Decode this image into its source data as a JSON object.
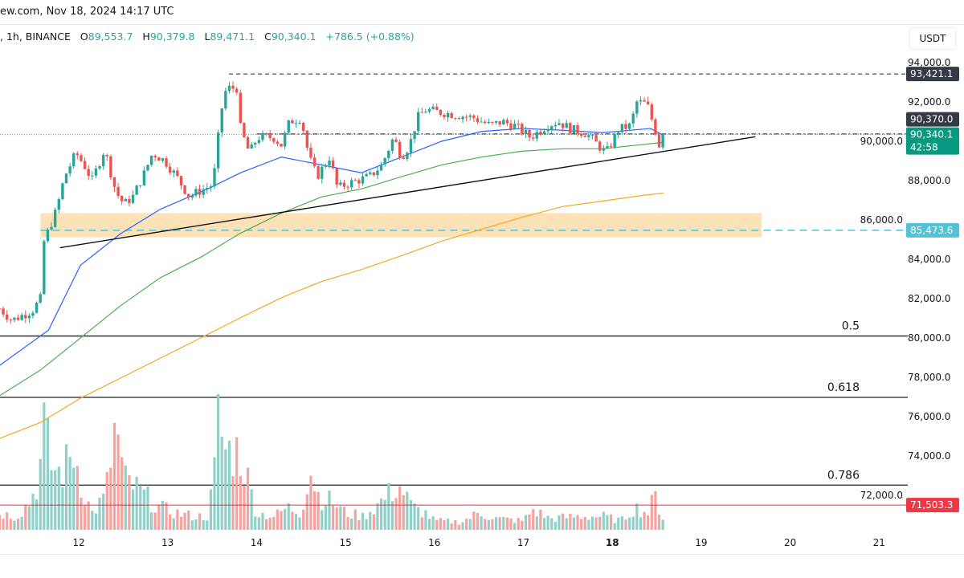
{
  "header": {
    "source_line": "ew.com, Nov 18, 2024 14:17 UTC",
    "symbol_line": ", 1h, BINANCE",
    "ohlc": {
      "open_label": "O",
      "open": "89,553.7",
      "high_label": "H",
      "high": "90,379.8",
      "low_label": "L",
      "low": "89,471.1",
      "close_label": "C",
      "close": "90,340.1",
      "change": "+786.5 (+0.88%)"
    },
    "currency": "USDT"
  },
  "colors": {
    "up": "#26a69a",
    "down": "#ef5350",
    "vol_up": "#8fd1c9",
    "vol_down": "#f4a3a1",
    "ma_fast": "#2962ff",
    "ma_mid": "#4caf50",
    "ma_slow": "#f5a623",
    "zone": "#fddcaa",
    "support_dashed": "#4fc3d7",
    "red_line": "#e0303a",
    "tag_dark": "#363a45",
    "tag_green": "#089981",
    "tag_cyan": "#4fc3d7",
    "tag_red": "#f23645"
  },
  "chart_data": {
    "type": "candlestick",
    "timeframe": "1h",
    "x_unit": "day of November 2024",
    "xlim": [
      11.11,
      21.3
    ],
    "ylim": [
      70400,
      95300
    ],
    "x_ticks": [
      12,
      13,
      14,
      15,
      16,
      17,
      18,
      19,
      20,
      21
    ],
    "x_tick_labels": [
      "12",
      "13",
      "14",
      "15",
      "16",
      "17",
      "18",
      "19",
      "20",
      "21"
    ],
    "y_ticks": [
      94000,
      92000,
      90000,
      88000,
      86000,
      84000,
      82000,
      80000,
      78000,
      76000,
      74000,
      72000
    ],
    "y_tick_labels": [
      "94,000.0",
      "92,000.0",
      "90,000.0",
      "88,000.0",
      "86,000.0",
      "84,000.0",
      "82,000.0",
      "80,000.0",
      "78,000.0",
      "76,000.0",
      "74,000.0",
      "72,000.0"
    ],
    "close_path": [
      [
        11.11,
        81500
      ],
      [
        11.25,
        80900
      ],
      [
        11.48,
        81400
      ],
      [
        11.57,
        82000
      ],
      [
        11.61,
        84900
      ],
      [
        11.75,
        86500
      ],
      [
        11.84,
        88200
      ],
      [
        11.97,
        89400
      ],
      [
        12.06,
        88800
      ],
      [
        12.15,
        88000
      ],
      [
        12.29,
        89600
      ],
      [
        12.42,
        87400
      ],
      [
        12.51,
        86800
      ],
      [
        12.61,
        87200
      ],
      [
        12.74,
        88400
      ],
      [
        12.83,
        89400
      ],
      [
        12.97,
        89000
      ],
      [
        13.1,
        88200
      ],
      [
        13.24,
        87200
      ],
      [
        13.42,
        87600
      ],
      [
        13.51,
        87800
      ],
      [
        13.6,
        91500
      ],
      [
        13.66,
        92700
      ],
      [
        13.78,
        92700
      ],
      [
        13.82,
        90600
      ],
      [
        13.92,
        89400
      ],
      [
        14.01,
        90200
      ],
      [
        14.19,
        90200
      ],
      [
        14.28,
        89800
      ],
      [
        14.37,
        91000
      ],
      [
        14.5,
        91200
      ],
      [
        14.59,
        89200
      ],
      [
        14.68,
        88200
      ],
      [
        14.82,
        89200
      ],
      [
        14.91,
        87600
      ],
      [
        15.0,
        87800
      ],
      [
        15.13,
        88000
      ],
      [
        15.27,
        88200
      ],
      [
        15.41,
        88800
      ],
      [
        15.54,
        90200
      ],
      [
        15.63,
        89200
      ],
      [
        15.72,
        89800
      ],
      [
        15.81,
        91200
      ],
      [
        15.9,
        91600
      ],
      [
        16.17,
        91400
      ],
      [
        16.44,
        91200
      ],
      [
        16.63,
        90800
      ],
      [
        16.76,
        91000
      ],
      [
        16.9,
        90800
      ],
      [
        17.08,
        90200
      ],
      [
        17.26,
        90800
      ],
      [
        17.39,
        91000
      ],
      [
        17.54,
        90600
      ],
      [
        17.71,
        90400
      ],
      [
        17.84,
        89800
      ],
      [
        17.93,
        89400
      ],
      [
        18.07,
        90600
      ],
      [
        18.21,
        90800
      ],
      [
        18.27,
        92000
      ],
      [
        18.39,
        91900
      ],
      [
        18.48,
        90600
      ],
      [
        18.54,
        89600
      ],
      [
        18.58,
        90340.1
      ]
    ],
    "volume_relative": [
      [
        11.11,
        15
      ],
      [
        11.3,
        12
      ],
      [
        11.45,
        25
      ],
      [
        11.55,
        45
      ],
      [
        11.61,
        90
      ],
      [
        11.7,
        55
      ],
      [
        11.8,
        50
      ],
      [
        11.95,
        70
      ],
      [
        12.05,
        35
      ],
      [
        12.15,
        15
      ],
      [
        12.3,
        30
      ],
      [
        12.42,
        95
      ],
      [
        12.5,
        45
      ],
      [
        12.6,
        40
      ],
      [
        12.75,
        30
      ],
      [
        12.9,
        20
      ],
      [
        13.1,
        15
      ],
      [
        13.3,
        12
      ],
      [
        13.45,
        12
      ],
      [
        13.52,
        45
      ],
      [
        13.57,
        100
      ],
      [
        13.65,
        70
      ],
      [
        13.8,
        70
      ],
      [
        13.9,
        45
      ],
      [
        14.0,
        15
      ],
      [
        14.2,
        12
      ],
      [
        14.35,
        20
      ],
      [
        14.5,
        15
      ],
      [
        14.6,
        55
      ],
      [
        14.7,
        30
      ],
      [
        14.85,
        25
      ],
      [
        15.0,
        15
      ],
      [
        15.2,
        12
      ],
      [
        15.4,
        25
      ],
      [
        15.6,
        40
      ],
      [
        15.75,
        20
      ],
      [
        15.9,
        15
      ],
      [
        16.0,
        8
      ],
      [
        16.3,
        7
      ],
      [
        16.5,
        15
      ],
      [
        16.7,
        10
      ],
      [
        17.0,
        8
      ],
      [
        17.1,
        18
      ],
      [
        17.3,
        10
      ],
      [
        17.6,
        12
      ],
      [
        17.9,
        12
      ],
      [
        18.1,
        8
      ],
      [
        18.25,
        20
      ],
      [
        18.4,
        15
      ],
      [
        18.48,
        30
      ],
      [
        18.58,
        8
      ]
    ],
    "moving_averages": [
      {
        "color_key": "ma_fast",
        "points": [
          [
            11.11,
            78600
          ],
          [
            11.66,
            80400
          ],
          [
            12.02,
            83700
          ],
          [
            12.47,
            85300
          ],
          [
            12.92,
            86550
          ],
          [
            13.46,
            87600
          ],
          [
            13.82,
            88400
          ],
          [
            14.28,
            89200
          ],
          [
            14.73,
            88800
          ],
          [
            15.18,
            88400
          ],
          [
            15.63,
            89200
          ],
          [
            16.08,
            90000
          ],
          [
            16.53,
            90500
          ],
          [
            16.99,
            90650
          ],
          [
            17.44,
            90560
          ],
          [
            17.89,
            90440
          ],
          [
            18.43,
            90650
          ],
          [
            18.58,
            90300
          ]
        ]
      },
      {
        "color_key": "ma_mid",
        "points": [
          [
            11.11,
            77060
          ],
          [
            11.57,
            78370
          ],
          [
            12.02,
            80000
          ],
          [
            12.47,
            81640
          ],
          [
            12.92,
            83070
          ],
          [
            13.37,
            84100
          ],
          [
            13.82,
            85330
          ],
          [
            14.28,
            86350
          ],
          [
            14.73,
            87170
          ],
          [
            15.18,
            87580
          ],
          [
            15.63,
            88200
          ],
          [
            16.08,
            88800
          ],
          [
            16.53,
            89200
          ],
          [
            16.99,
            89500
          ],
          [
            17.44,
            89620
          ],
          [
            17.89,
            89620
          ],
          [
            18.58,
            89950
          ]
        ]
      },
      {
        "color_key": "ma_slow",
        "points": [
          [
            11.11,
            74890
          ],
          [
            11.57,
            75700
          ],
          [
            12.02,
            76940
          ],
          [
            12.47,
            77960
          ],
          [
            12.92,
            78980
          ],
          [
            13.37,
            80000
          ],
          [
            13.82,
            81030
          ],
          [
            14.28,
            82050
          ],
          [
            14.73,
            82870
          ],
          [
            15.18,
            83480
          ],
          [
            15.63,
            84180
          ],
          [
            16.08,
            84920
          ],
          [
            16.53,
            85530
          ],
          [
            16.99,
            86140
          ],
          [
            17.44,
            86680
          ],
          [
            17.89,
            86960
          ],
          [
            18.34,
            87250
          ],
          [
            18.58,
            87370
          ]
        ]
      }
    ],
    "trendline": [
      [
        11.79,
        84590
      ],
      [
        19.61,
        90230
      ]
    ],
    "support_zone": {
      "from": 85120,
      "to": 86350,
      "x_start": 11.57,
      "x_end": 19.68
    },
    "horizontal_levels": [
      {
        "price": 93421.1,
        "label": "93,421.1",
        "style": "dashed",
        "tag": "tag_dark",
        "x_start": 13.69
      },
      {
        "price": 90370.0,
        "label": "90,370.0",
        "style": "dashdot",
        "tag": "tag_dark",
        "x_start": 14.0
      },
      {
        "price": 90340.1,
        "label": "90,340.1",
        "countdown": "42:58",
        "style": "dotted",
        "tag": "tag_green"
      },
      {
        "price": 85473.6,
        "label": "85,473.6",
        "style": "dashed-cyan",
        "tag": "tag_cyan",
        "x_start": 11.57
      },
      {
        "price": 71503.3,
        "label": "71,503.3",
        "style": "solid-red",
        "tag": "tag_red"
      }
    ],
    "fib_levels": [
      {
        "ratio_label": "0.5",
        "price": 80100
      },
      {
        "ratio_label": "0.618",
        "price": 76980
      },
      {
        "ratio_label": "0.786",
        "price": 72520
      }
    ]
  }
}
